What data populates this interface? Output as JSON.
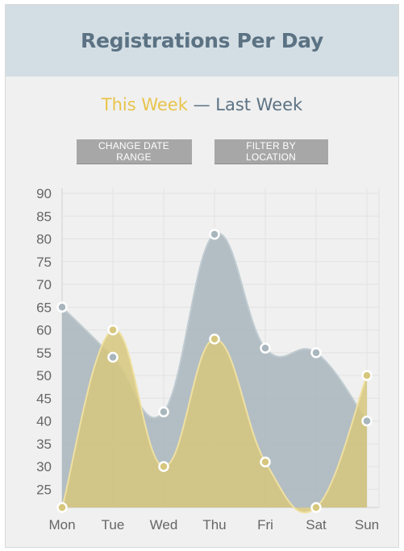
{
  "header": {
    "title": "Registrations Per Day"
  },
  "legend": {
    "this_week": "This Week",
    "separator": "—",
    "last_week": "Last Week"
  },
  "buttons": {
    "change_date_range": "CHANGE DATE RANGE",
    "filter_by_location": "FILTER BY LOCATION"
  },
  "colors": {
    "this_week_fill": "#d6c77d",
    "this_week_stroke": "#efe0a2",
    "last_week_fill": "#a8b5bc",
    "last_week_stroke": "#bfcbd1",
    "accent": "#e8c44a",
    "header_bg": "#d3dee4"
  },
  "chart_data": {
    "type": "area",
    "categories": [
      "Mon",
      "Tue",
      "Wed",
      "Thu",
      "Fri",
      "Sat",
      "Sun"
    ],
    "series": [
      {
        "name": "Last Week",
        "values": [
          65,
          54,
          42,
          81,
          56,
          55,
          40
        ]
      },
      {
        "name": "This Week",
        "values": [
          20,
          60,
          30,
          58,
          31,
          21,
          50
        ]
      }
    ],
    "ylim": [
      21,
      90
    ],
    "yticks": [
      25,
      30,
      35,
      40,
      45,
      50,
      55,
      60,
      65,
      70,
      75,
      80,
      85,
      90
    ],
    "grid": true,
    "title": "",
    "xlabel": "",
    "ylabel": ""
  }
}
